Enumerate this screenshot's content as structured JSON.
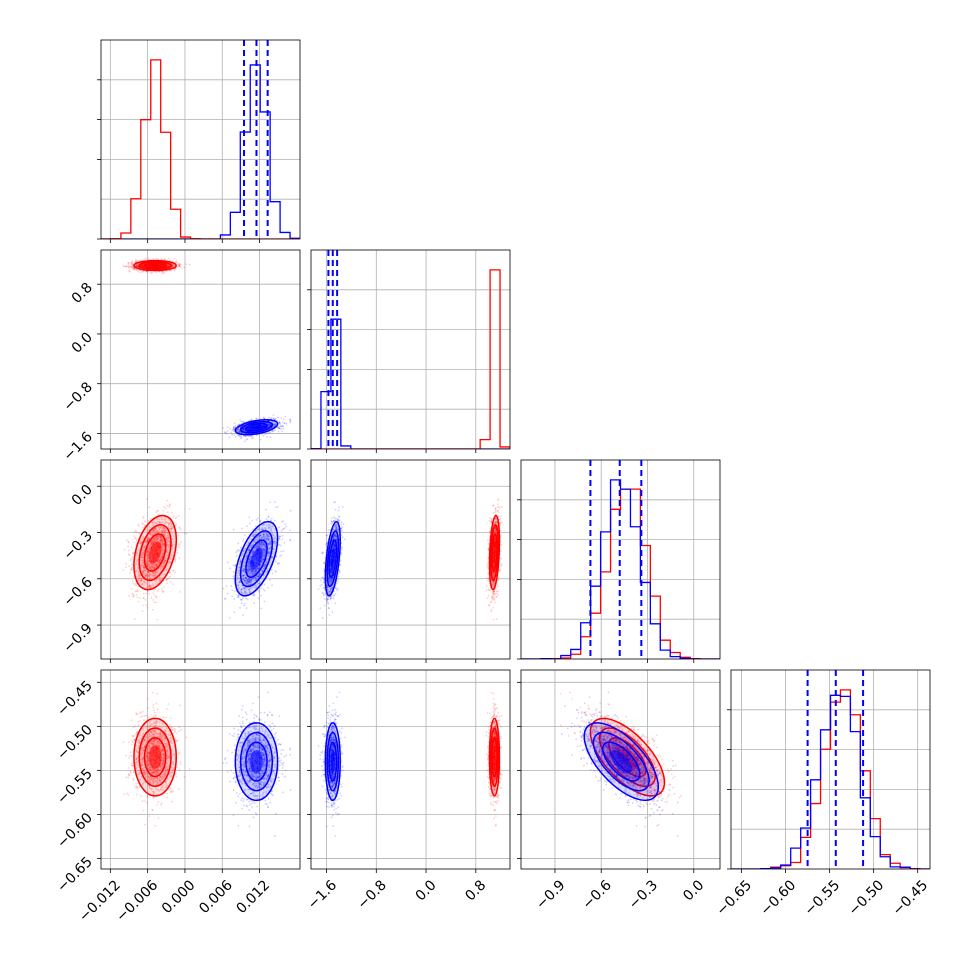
{
  "chart_data": {
    "type": "corner",
    "title": "",
    "series": [
      {
        "name": "",
        "color": "#ff0000",
        "means": [
          -0.0048,
          1.1,
          -0.43,
          -0.535
        ],
        "sigmas": [
          0.0017,
          0.04,
          0.12,
          0.022
        ]
      },
      {
        "name": "",
        "color": "#0000ff",
        "means": [
          0.0115,
          -1.5,
          -0.47,
          -0.54
        ],
        "sigmas": [
          0.0017,
          0.06,
          0.12,
          0.022
        ]
      }
    ],
    "quantile_lines": {
      "color": "#0000ff",
      "style": "dashed",
      "values": [
        [
          0.0095,
          0.0115,
          0.0133
        ],
        [
          -1.57,
          -1.5,
          -1.43
        ],
        [
          -0.67,
          -0.48,
          -0.34
        ],
        [
          -0.575,
          -0.543,
          -0.512
        ]
      ]
    },
    "axis_ranges": [
      [
        -0.0135,
        0.0185
      ],
      [
        -1.85,
        1.35
      ],
      [
        -1.12,
        0.17
      ],
      [
        -0.662,
        -0.436
      ]
    ],
    "ticks": [
      [
        "-0.012",
        "-0.006",
        "0.000",
        "0.006",
        "0.012"
      ],
      [
        "-1.6",
        "-0.8",
        "0.0",
        "0.8"
      ],
      [
        "-0.9",
        "-0.6",
        "-0.3",
        "0.0"
      ],
      [
        "-0.65",
        "-0.60",
        "-0.55",
        "-0.50",
        "-0.45"
      ]
    ],
    "tick_values": [
      [
        -0.012,
        -0.006,
        0.0,
        0.006,
        0.012
      ],
      [
        -1.6,
        -0.8,
        0.0,
        0.8
      ],
      [
        -0.9,
        -0.6,
        -0.3,
        0.0
      ],
      [
        -0.65,
        -0.6,
        -0.55,
        -0.5,
        -0.45
      ]
    ],
    "grid": true,
    "hist_type": "step",
    "contours": true,
    "scatter_points": true
  }
}
